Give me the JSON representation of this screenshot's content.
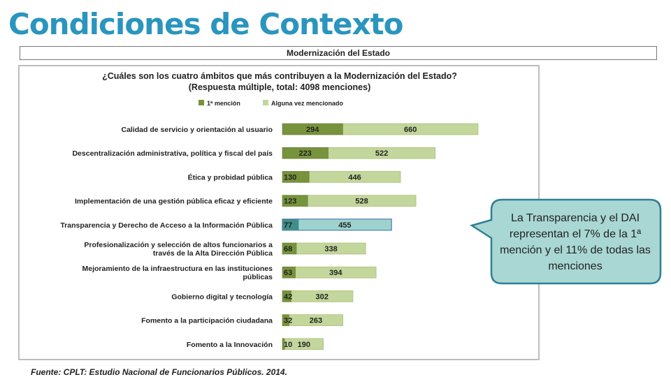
{
  "header": {
    "title": "Condiciones de Contexto",
    "section": "Modernización del Estado"
  },
  "chart_data": {
    "type": "bar",
    "orientation": "horizontal",
    "stacked": true,
    "title": "¿Cuáles son los cuatro ámbitos que más contribuyen a la Modernización del Estado?",
    "subtitle": "(Respuesta múltiple, total: 4098 menciones)",
    "legend_position": "top",
    "highlight_category_index": 4,
    "categories": [
      "Calidad de servicio y orientación al usuario",
      "Descentralización administrativa, política y fiscal del país",
      "Ética y probidad pública",
      "Implementación de una gestión pública eficaz y eficiente",
      "Transparencia y Derecho de Acceso a la Información Pública",
      "Profesionalización y selección de altos funcionarios a través de la Alta Dirección Pública",
      "Mejoramiento de la infraestructura en las instituciones públicas",
      "Gobierno digital y tecnología",
      "Fomento a la participación ciudadana",
      "Fomento a la Innovación"
    ],
    "series": [
      {
        "name": "1ª mención",
        "color": "#77933c",
        "values": [
          294,
          223,
          130,
          123,
          77,
          68,
          63,
          42,
          32,
          10
        ]
      },
      {
        "name": "Alguna vez mencionado",
        "color": "#c3d69b",
        "values": [
          660,
          522,
          446,
          528,
          455,
          338,
          394,
          302,
          263,
          190
        ]
      }
    ],
    "highlight_color": "#9dd3cc"
  },
  "callout": {
    "text": "La Transparencia y el DAI representan el 7% de la 1ª mención y el 11% de todas las menciones",
    "fill": "#a9d7d3",
    "border": "#2f7f94"
  },
  "footer": {
    "source": "Fuente: CPLT: Estudio Nacional de Funcionarios Públicos. 2014."
  }
}
